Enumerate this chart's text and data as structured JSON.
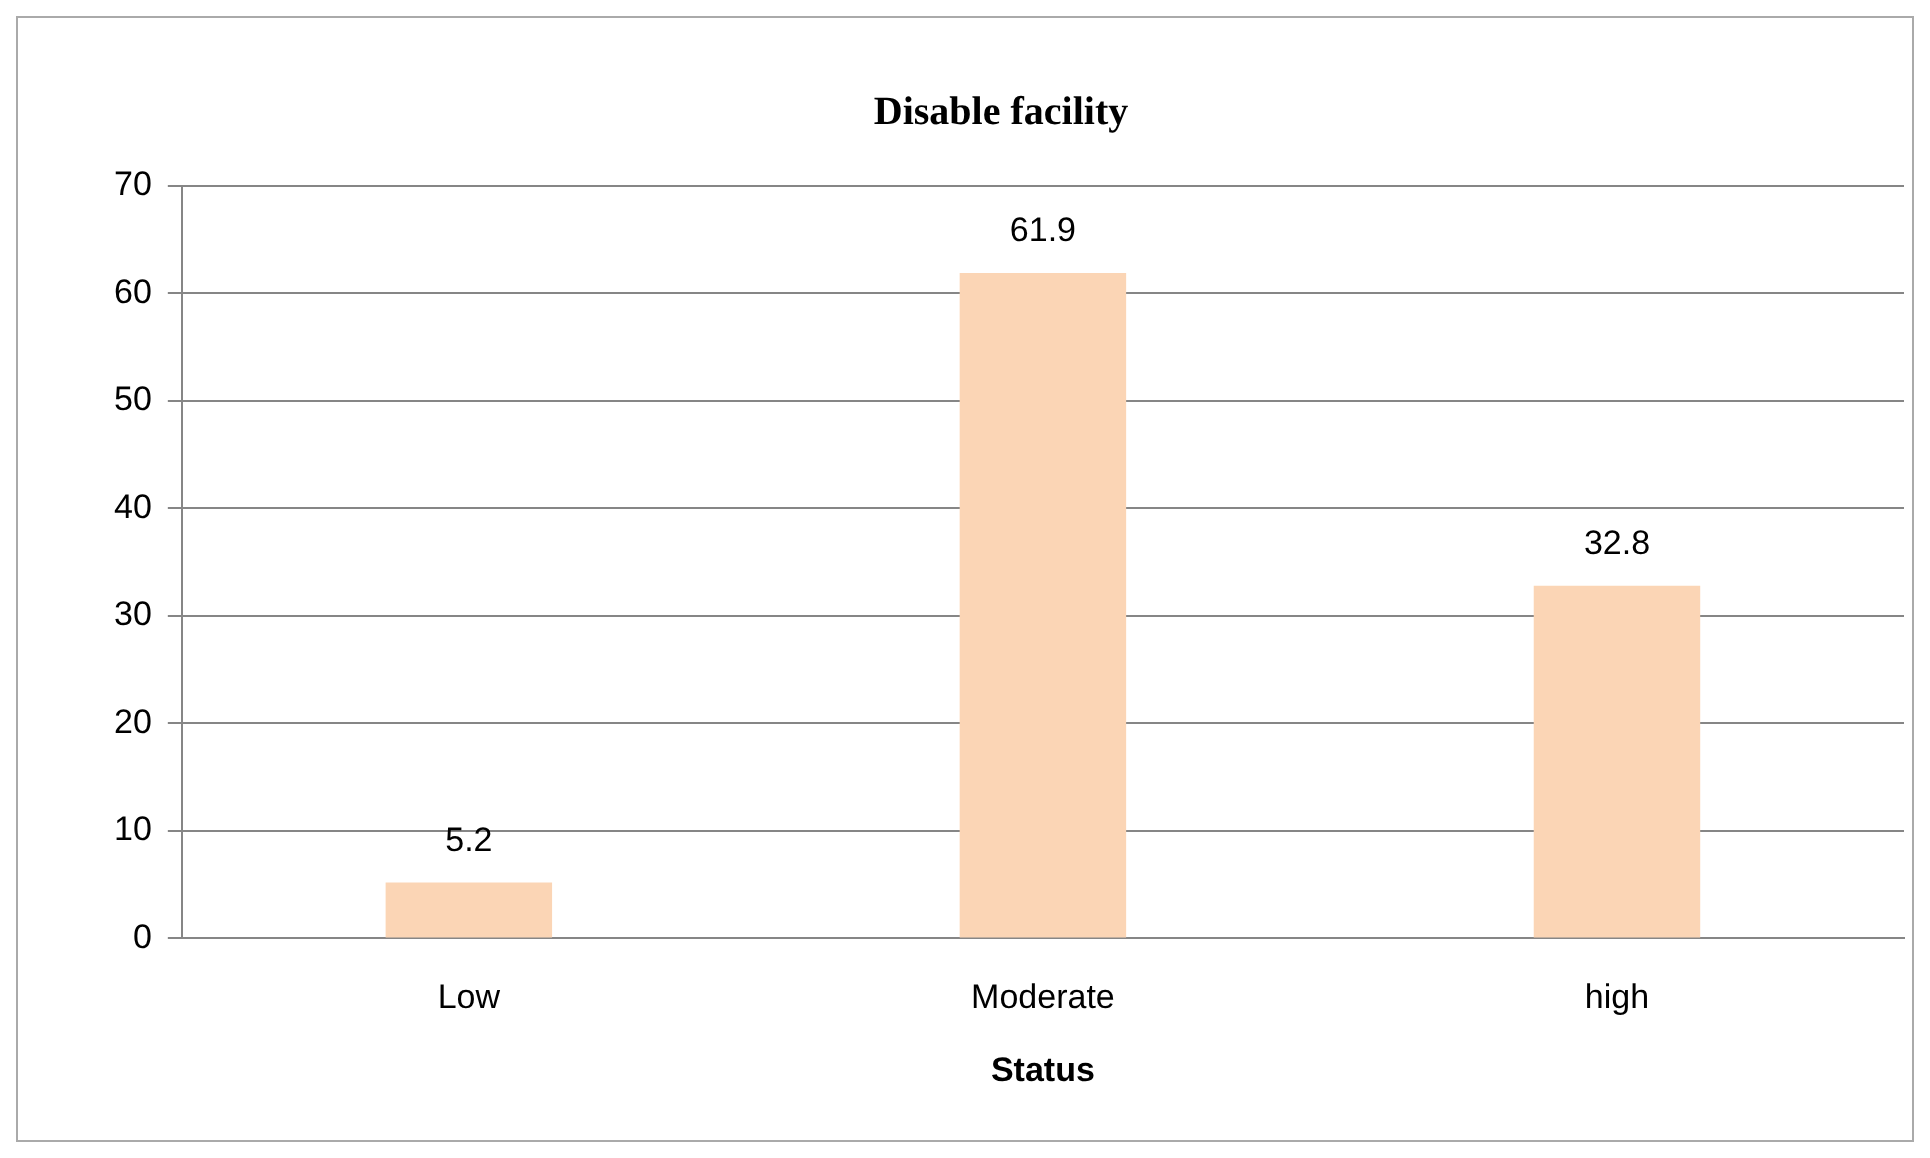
{
  "chart_data": {
    "type": "bar",
    "title": "Disable facility",
    "xlabel": "Status",
    "categories": [
      "Low",
      "Moderate",
      "high"
    ],
    "values": [
      5.2,
      61.9,
      32.8
    ],
    "color": "#fbd5b5",
    "ylim": [
      0,
      70
    ],
    "yticks": [
      0,
      10,
      20,
      30,
      40,
      50,
      60,
      70
    ],
    "grid": "y",
    "data_labels": true,
    "legend": false
  }
}
